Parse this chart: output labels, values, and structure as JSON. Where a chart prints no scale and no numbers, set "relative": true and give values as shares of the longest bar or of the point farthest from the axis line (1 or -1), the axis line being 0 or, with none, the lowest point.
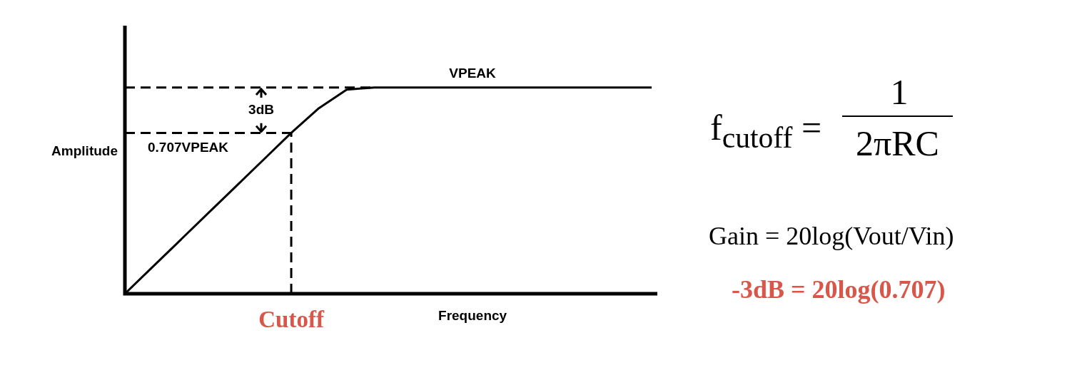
{
  "chart_data": {
    "type": "line",
    "relative": true,
    "xlabel": "Frequency",
    "ylabel": "Amplitude",
    "categories": [
      null,
      null,
      null,
      null,
      null,
      null,
      null,
      null,
      null,
      null,
      null,
      null,
      null,
      null,
      null,
      null,
      null,
      null,
      null,
      null
    ],
    "series": [
      {
        "color": "#000000",
        "values": [
          0,
          0.13,
          0.26,
          0.39,
          0.52,
          0.65,
          0.78,
          0.9,
          0.99,
          1,
          1,
          1,
          1,
          1,
          1,
          1,
          1,
          1,
          1,
          1
        ]
      }
    ],
    "ref_lines": [
      {
        "axis": "y",
        "value": 1,
        "line_style": "dashed",
        "color": "#000000"
      },
      {
        "axis": "y",
        "value": 0.78,
        "label": "0.707VPEAK",
        "line_style": "dashed",
        "color": "#000000"
      }
    ],
    "annotations": [
      "3dB",
      {
        "text": "VPEAK",
        "y": 1
      },
      "f$_{cutoff}$ =",
      "1",
      "2πRC",
      "Gain =  20log(Vout/Vin)",
      "-3dB = 20log(0.707)",
      "Cutoff"
    ],
    "legend": false,
    "grid": false,
    "marker": "none",
    "line_style": "solid",
    "tick_labels": false
  }
}
